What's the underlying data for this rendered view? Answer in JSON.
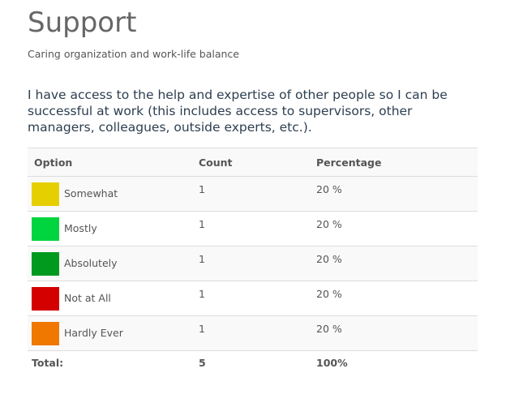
{
  "header": {
    "title": "Support",
    "subtitle": "Caring organization and work-life balance"
  },
  "question": "I have access to the help and expertise of other people so I can be successful at work (this includes access to supervisors, other managers, colleagues, outside experts, etc.).",
  "table": {
    "headers": {
      "option": "Option",
      "count": "Count",
      "percentage": "Percentage"
    },
    "rows": [
      {
        "label": "Somewhat",
        "count": "1",
        "percentage": "20 %",
        "color": "#e6cf00"
      },
      {
        "label": "Mostly",
        "count": "1",
        "percentage": "20 %",
        "color": "#00d43f"
      },
      {
        "label": "Absolutely",
        "count": "1",
        "percentage": "20 %",
        "color": "#009a1f"
      },
      {
        "label": "Not at All",
        "count": "1",
        "percentage": "20 %",
        "color": "#d40000"
      },
      {
        "label": "Hardly Ever",
        "count": "1",
        "percentage": "20 %",
        "color": "#f07800"
      }
    ],
    "total": {
      "label": "Total:",
      "count": "5",
      "percentage": "100%"
    }
  }
}
